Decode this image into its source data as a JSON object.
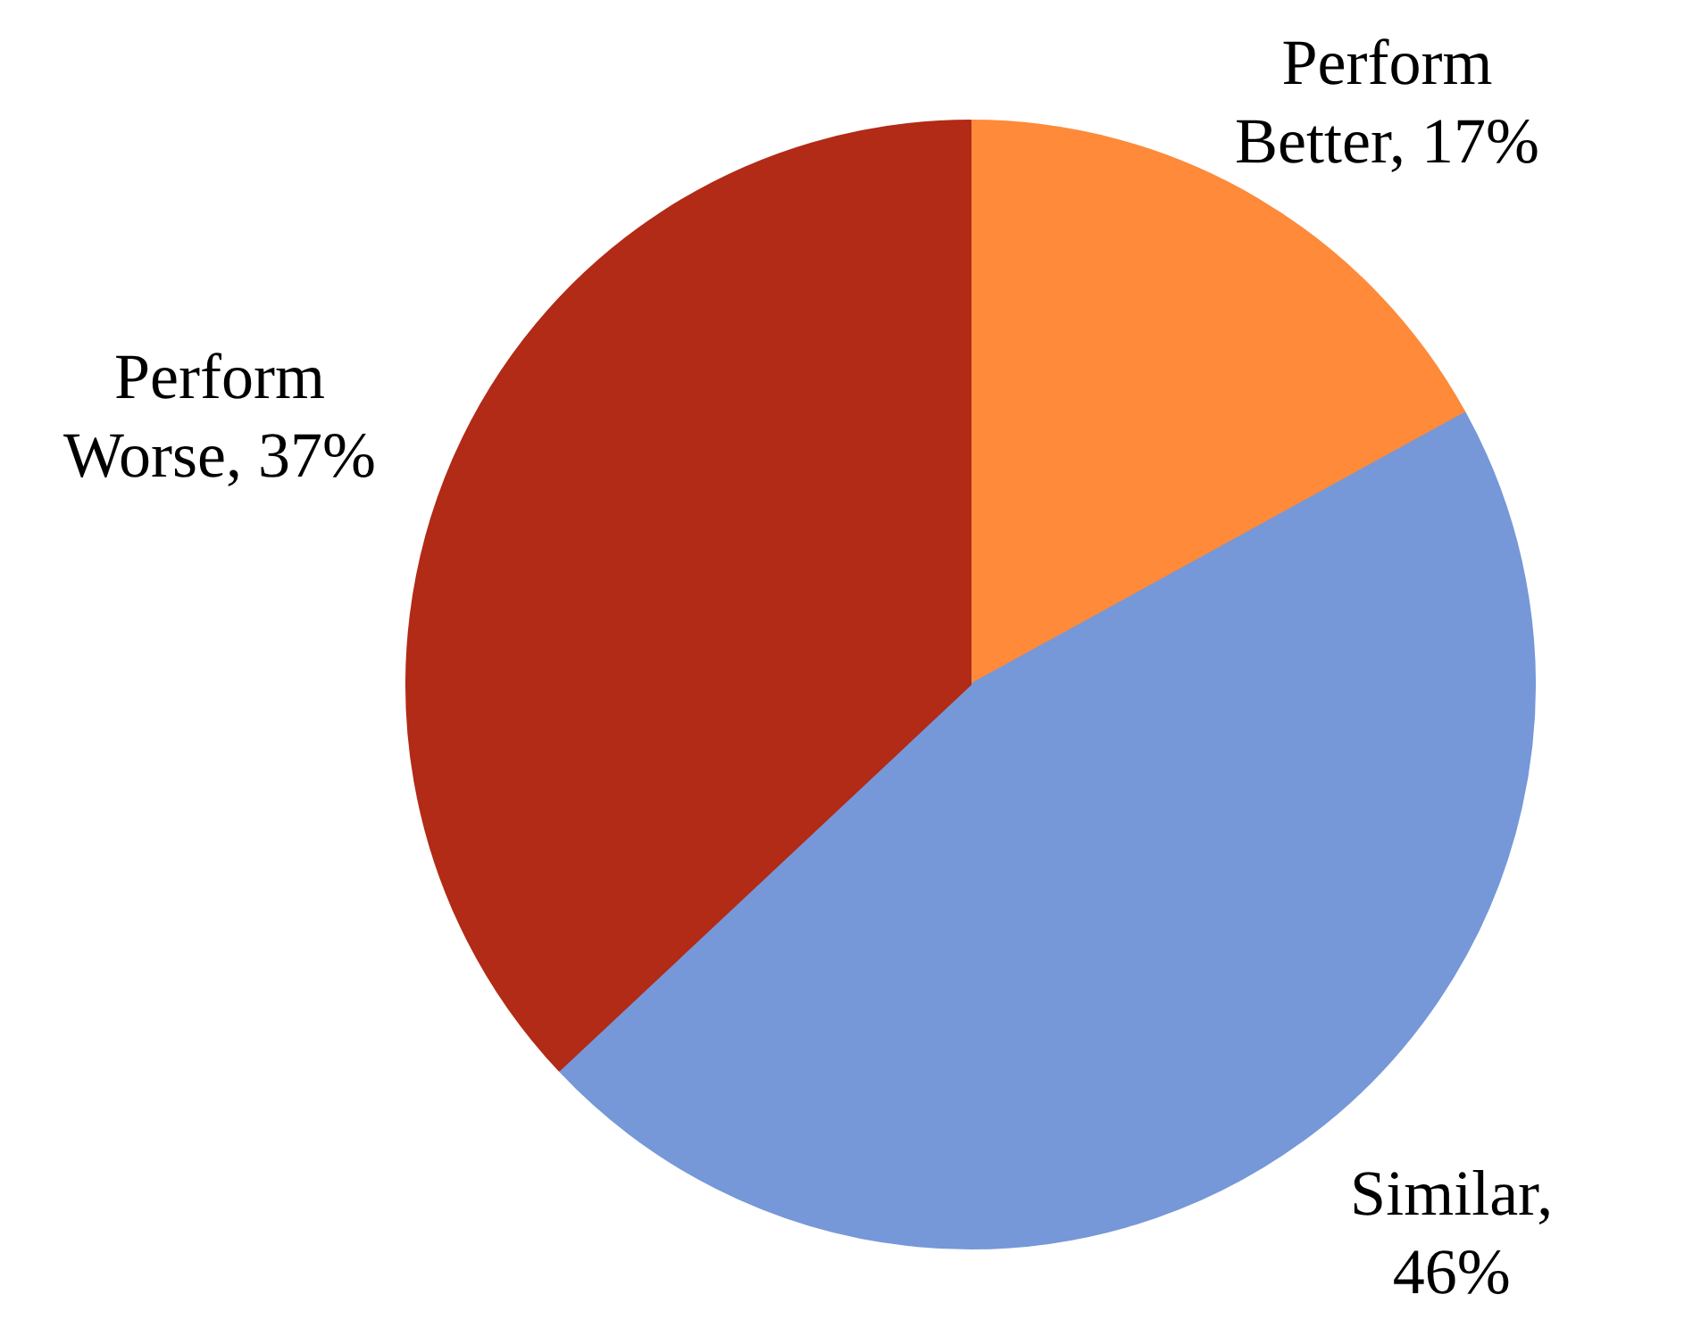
{
  "chart_data": {
    "type": "pie",
    "categories": [
      "Perform Better, 17%",
      "Similar, 46%",
      "Perform Worse, 37%"
    ],
    "values": [
      17,
      46,
      37
    ],
    "colors": [
      "#fe8a3a",
      "#7698d8",
      "#b22b17"
    ]
  }
}
